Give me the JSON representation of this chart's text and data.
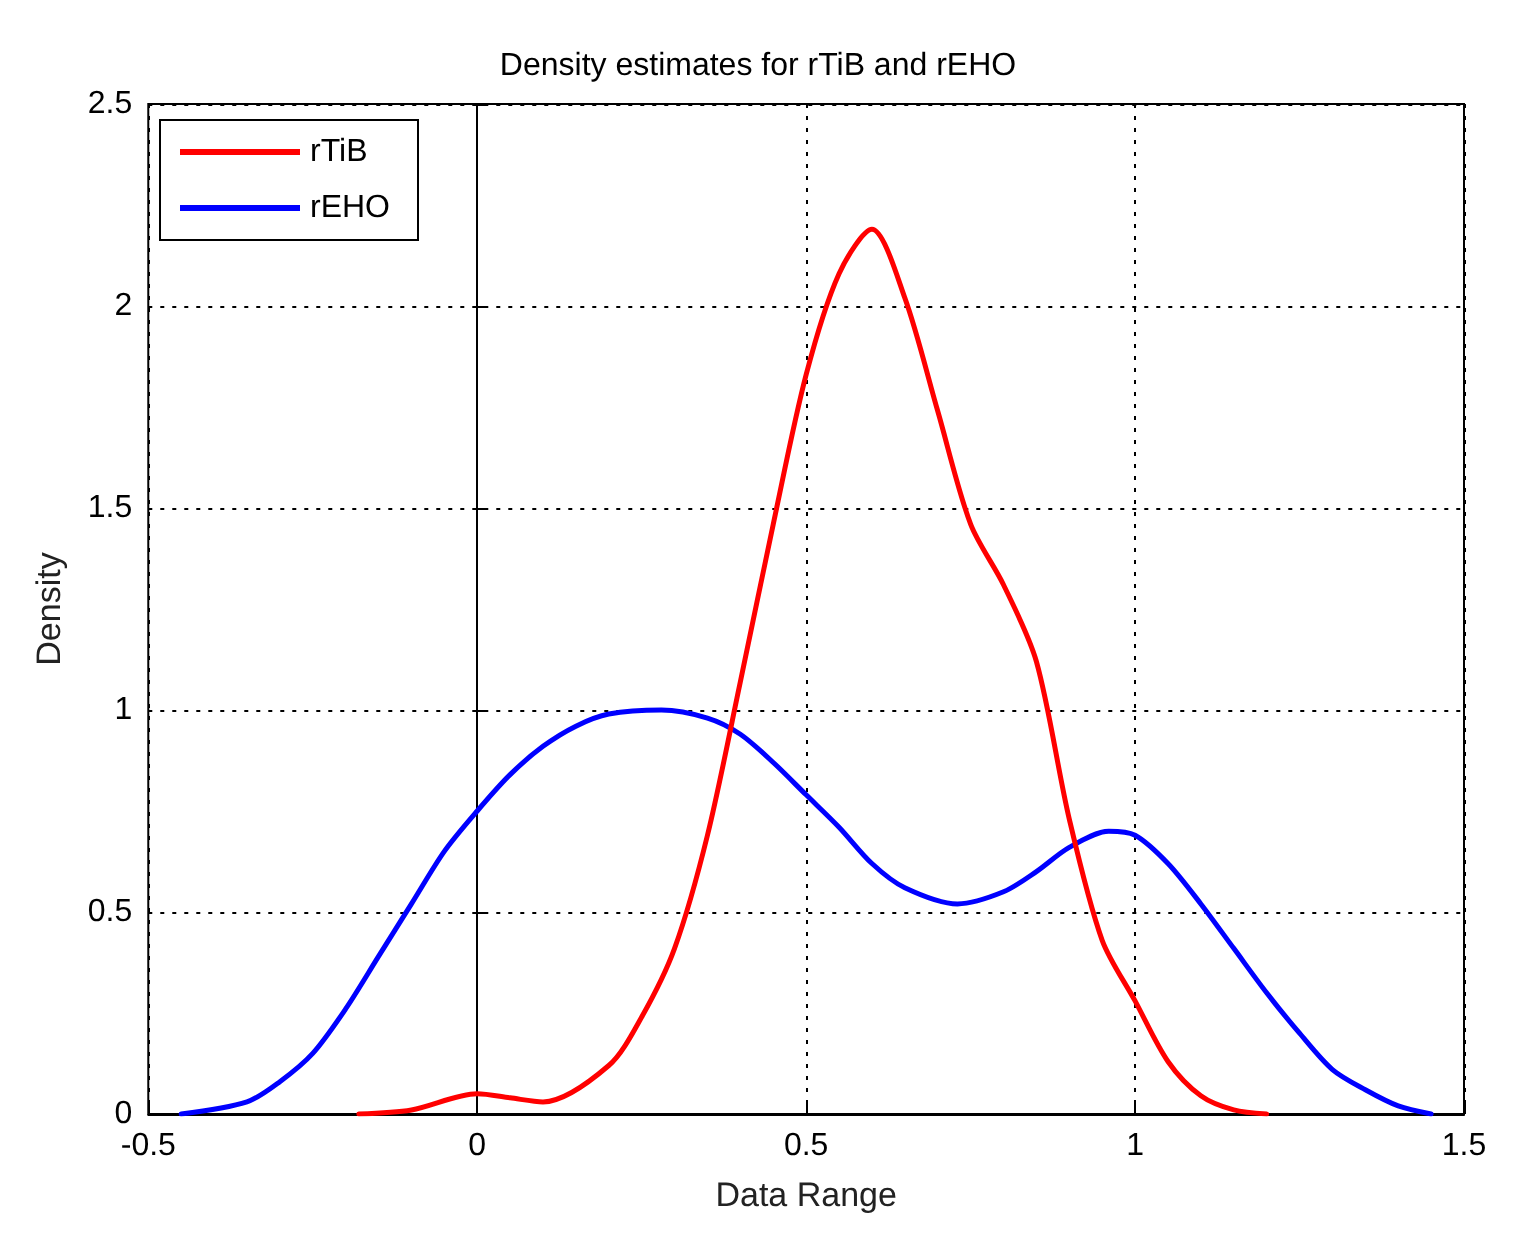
{
  "chart_data": {
    "type": "line",
    "title": "Density estimates for rTiB and rEHO",
    "xlabel": "Data Range",
    "ylabel": "Density",
    "xlim": [
      -0.5,
      1.5
    ],
    "xticks": [
      -0.5,
      0,
      0.5,
      1,
      1.5
    ],
    "ylim": [
      0,
      2.5
    ],
    "yticks": [
      0,
      0.5,
      1,
      1.5,
      2,
      2.5
    ],
    "grid": true,
    "legend": "top left",
    "marker": "none",
    "line_style": "solid",
    "series": [
      {
        "name": "rTiB",
        "color": "#ff0000",
        "x": [
          -0.18,
          -0.1,
          0,
          0.05,
          0.1,
          0.2,
          0.25,
          0.3,
          0.35,
          0.4,
          0.45,
          0.5,
          0.55,
          0.6,
          0.65,
          0.7,
          0.75,
          0.8,
          0.85,
          0.9,
          0.95,
          1.0,
          1.05,
          1.1,
          1.15,
          1.2
        ],
        "values": [
          0,
          0.01,
          0.05,
          0.04,
          0.03,
          0.12,
          0.24,
          0.41,
          0.69,
          1.07,
          1.46,
          1.83,
          2.08,
          2.19,
          2.02,
          1.74,
          1.46,
          1.31,
          1.12,
          0.73,
          0.43,
          0.28,
          0.13,
          0.045,
          0.01,
          0
        ]
      },
      {
        "name": "rEHO",
        "color": "#0000ff",
        "x": [
          -0.45,
          -0.35,
          -0.3,
          -0.25,
          -0.2,
          -0.15,
          -0.1,
          -0.05,
          0,
          0.05,
          0.1,
          0.15,
          0.2,
          0.28,
          0.35,
          0.4,
          0.45,
          0.5,
          0.55,
          0.6,
          0.65,
          0.73,
          0.8,
          0.85,
          0.9,
          0.96,
          1.0,
          1.05,
          1.1,
          1.15,
          1.2,
          1.25,
          1.3,
          1.35,
          1.4,
          1.45
        ],
        "values": [
          0,
          0.03,
          0.08,
          0.15,
          0.26,
          0.39,
          0.52,
          0.65,
          0.75,
          0.84,
          0.91,
          0.96,
          0.99,
          1.0,
          0.98,
          0.94,
          0.87,
          0.79,
          0.71,
          0.62,
          0.56,
          0.52,
          0.55,
          0.6,
          0.66,
          0.7,
          0.69,
          0.62,
          0.52,
          0.41,
          0.3,
          0.2,
          0.11,
          0.06,
          0.02,
          0
        ]
      }
    ]
  }
}
